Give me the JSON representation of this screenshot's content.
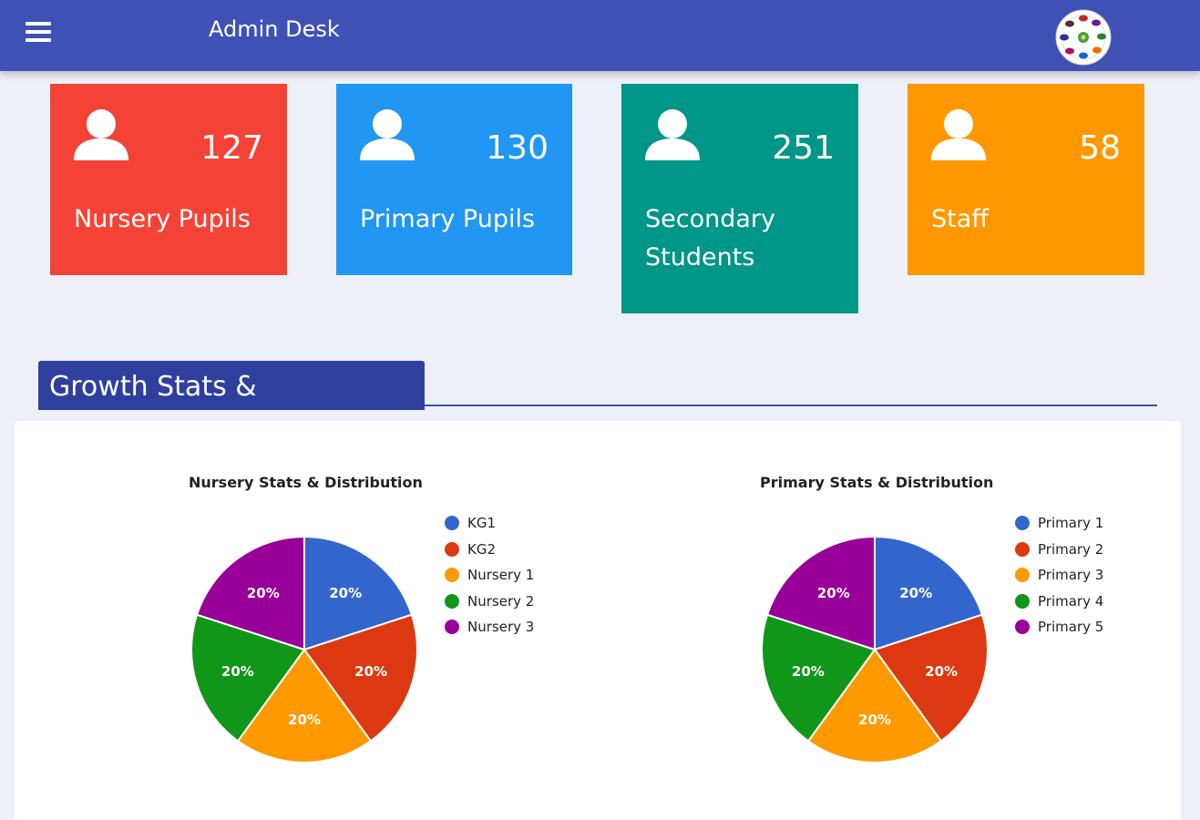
{
  "header": {
    "title": "Admin Desk"
  },
  "cards": [
    {
      "count": "127",
      "label": "Nursery Pupils",
      "color": "#f44336"
    },
    {
      "count": "130",
      "label": "Primary Pupils",
      "color": "#2196f3"
    },
    {
      "count": "251",
      "label": "Secondary Students",
      "color": "#009688"
    },
    {
      "count": "58",
      "label": "Staff",
      "color": "#ff9800"
    }
  ],
  "section": {
    "title": "Growth Stats & Distribution"
  },
  "chart_data": [
    {
      "type": "pie",
      "title": "Nursery Stats & Distribution",
      "categories": [
        "KG1",
        "KG2",
        "Nursery 1",
        "Nursery 2",
        "Nursery 3"
      ],
      "values": [
        20,
        20,
        20,
        20,
        20
      ],
      "labels": [
        "20%",
        "20%",
        "20%",
        "20%",
        "20%"
      ],
      "colors": [
        "#3366cc",
        "#dc3912",
        "#ff9900",
        "#109618",
        "#990099"
      ],
      "legend": "right"
    },
    {
      "type": "pie",
      "title": "Primary Stats & Distribution",
      "categories": [
        "Primary 1",
        "Primary 2",
        "Primary 3",
        "Primary 4",
        "Primary 5"
      ],
      "values": [
        20,
        20,
        20,
        20,
        20
      ],
      "labels": [
        "20%",
        "20%",
        "20%",
        "20%",
        "20%"
      ],
      "colors": [
        "#3366cc",
        "#dc3912",
        "#ff9900",
        "#109618",
        "#990099"
      ],
      "legend": "right"
    }
  ]
}
